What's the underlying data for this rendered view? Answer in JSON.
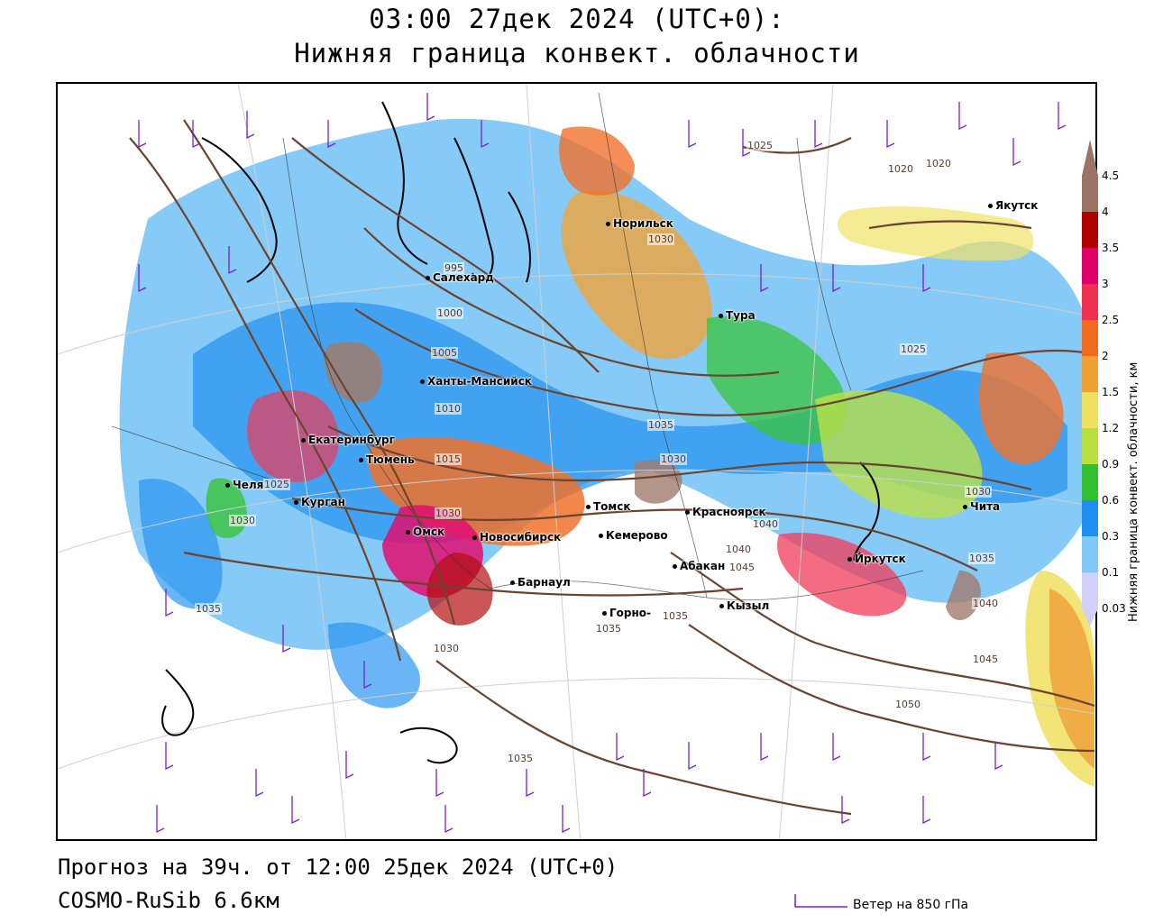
{
  "header": {
    "title_line1": "03:00 27дек 2024 (UTC+0):",
    "title_line2": "Нижняя граница конвект. облачности"
  },
  "footer": {
    "forecast": "Прогноз на 39ч. от 12:00 25дек 2024 (UTC+0)",
    "model": "COSMO-RuSib 6.6км",
    "wind_legend": "Ветер на 850 гПа"
  },
  "colorbar": {
    "title": "Нижняя граница конвект. облачности, км",
    "ticks": [
      "4.5",
      "4",
      "3.5",
      "3",
      "2.5",
      "2",
      "1.5",
      "1.2",
      "0.9",
      "0.6",
      "0.3",
      "0.1",
      "0.03"
    ],
    "colors": [
      "#9c7466",
      "#b00000",
      "#e0006a",
      "#f03050",
      "#f06a20",
      "#f0a030",
      "#f0e060",
      "#b8e040",
      "#30c030",
      "#2090f0",
      "#80c8f8",
      "#d0d0f8"
    ]
  },
  "cities": [
    {
      "name": "Якутск"
    },
    {
      "name": "Норильск"
    },
    {
      "name": "Салехард"
    },
    {
      "name": "Тура"
    },
    {
      "name": "Ханты-Мансийск"
    },
    {
      "name": "Екатеринбург"
    },
    {
      "name": "Тюмень"
    },
    {
      "name": "Челя"
    },
    {
      "name": "Курган"
    },
    {
      "name": "Омск"
    },
    {
      "name": "Новосибирск"
    },
    {
      "name": "Томск"
    },
    {
      "name": "Кемерово"
    },
    {
      "name": "Красноярск"
    },
    {
      "name": "Барнаул"
    },
    {
      "name": "Абакан"
    },
    {
      "name": "Горно-"
    },
    {
      "name": "Кызыл"
    },
    {
      "name": "Иркутск"
    },
    {
      "name": "Чита"
    }
  ],
  "isobars": [
    "1025",
    "1020",
    "1020",
    "1030",
    "995",
    "1000",
    "1005",
    "1010",
    "1015",
    "1035",
    "1030",
    "1025",
    "1030",
    "1035",
    "1030",
    "1025",
    "1035",
    "1030",
    "1040",
    "1045",
    "1035",
    "1030",
    "1035",
    "1040",
    "1045",
    "1050",
    "1035",
    "1040"
  ],
  "colors": {
    "isobar": "#6b4430",
    "wind_barb": "#7a1fd0",
    "coast": "#000000"
  }
}
